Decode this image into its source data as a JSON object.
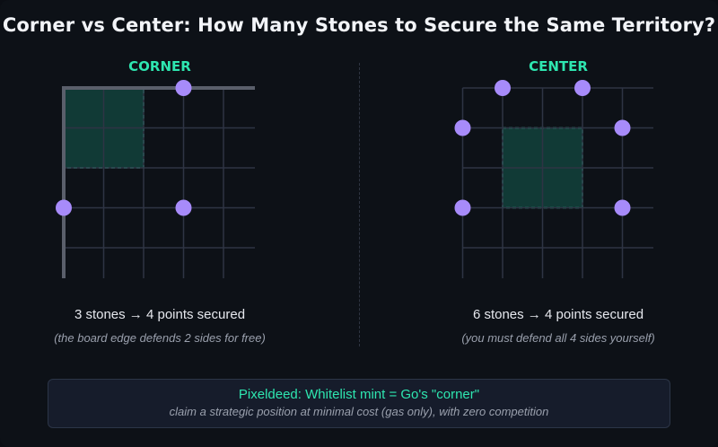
{
  "title": "Corner vs Center: How Many Stones to Secure the Same Territory?",
  "colors": {
    "background": "#0d1117",
    "grid": "#2e3444",
    "board_edge": "#5a5f6b",
    "stone": "#a78bfa",
    "territory_fill": "#113a36",
    "territory_border": "#2ee6b0",
    "accent": "#2ee6b0"
  },
  "corner": {
    "label": "CORNER",
    "stones_text": "3 stones → 4 points secured",
    "note": "(the board edge defends 2 sides for free)",
    "stones": [
      [
        3,
        0
      ],
      [
        0,
        3
      ],
      [
        3,
        3
      ]
    ],
    "territory": {
      "from": [
        0,
        0
      ],
      "to": [
        2,
        2
      ]
    }
  },
  "center": {
    "label": "CENTER",
    "stones_text": "6 stones → 4 points secured",
    "note": "(you must defend all 4 sides yourself)",
    "stones": [
      [
        1,
        0
      ],
      [
        3,
        0
      ],
      [
        0,
        1
      ],
      [
        4,
        1
      ],
      [
        0,
        3
      ],
      [
        4,
        3
      ]
    ],
    "territory": {
      "from": [
        1,
        1
      ],
      "to": [
        3,
        3
      ]
    }
  },
  "callout": {
    "main": "Pixeldeed: Whitelist mint = Go's \"corner\"",
    "sub": "claim a strategic position at minimal cost (gas only), with zero competition"
  }
}
